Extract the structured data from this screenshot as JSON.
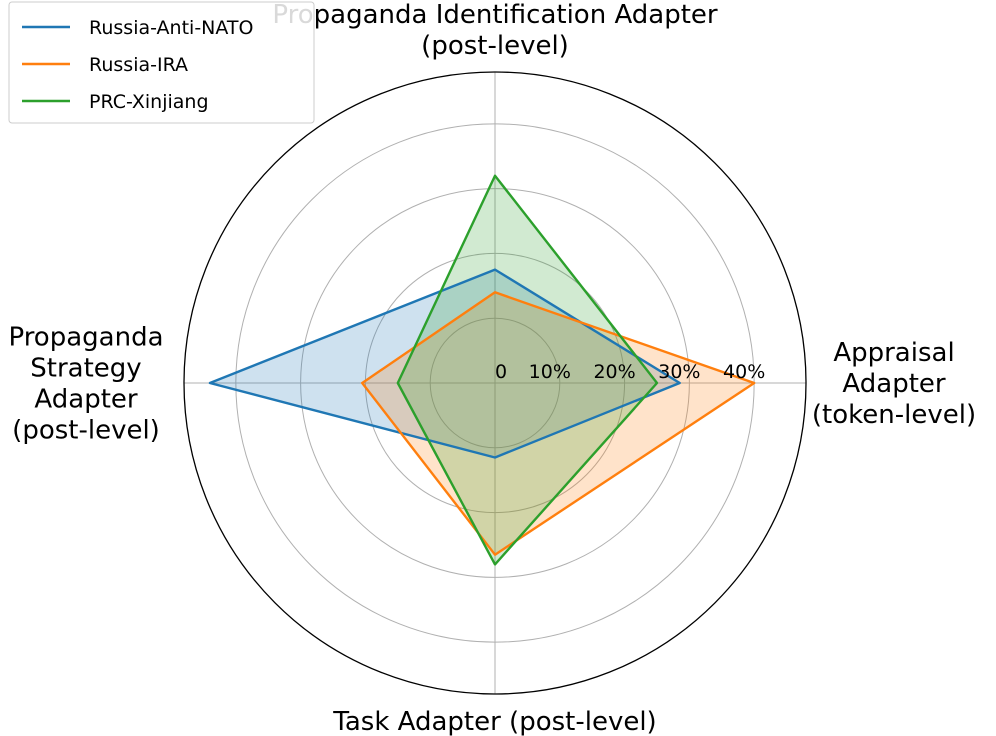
{
  "chart_data": {
    "type": "radar",
    "axes": [
      {
        "lines": [
          "Propaganda Identification Adapter",
          "(post-level)"
        ]
      },
      {
        "lines": [
          "Appraisal",
          "Adapter",
          "(token-level)"
        ]
      },
      {
        "lines": [
          "Task Adapter (post-level)"
        ]
      },
      {
        "lines": [
          "Propaganda",
          "Strategy",
          "Adapter",
          "(post-level)"
        ]
      }
    ],
    "r_ticks": [
      0,
      10,
      20,
      30,
      40
    ],
    "r_tick_labels": [
      "0",
      "10%",
      "20%",
      "30%",
      "40%"
    ],
    "r_max": 48,
    "grid": true,
    "legend_position": "top-left",
    "series": [
      {
        "name": "Russia-Anti-NATO",
        "color": "#1f77b4",
        "values": [
          17.5,
          28.5,
          11.5,
          44.0
        ]
      },
      {
        "name": "Russia-IRA",
        "color": "#ff7f0e",
        "values": [
          14.0,
          40.0,
          26.5,
          20.5
        ]
      },
      {
        "name": "PRC-Xinjiang",
        "color": "#2ca02c",
        "values": [
          32.0,
          25.0,
          28.0,
          15.0
        ]
      }
    ]
  }
}
